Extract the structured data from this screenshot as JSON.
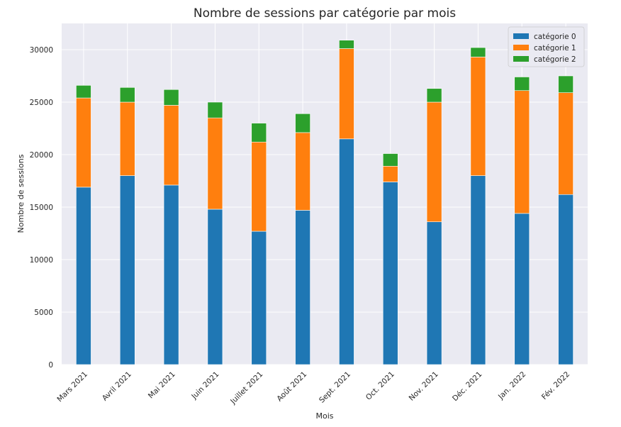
{
  "chart_data": {
    "type": "bar",
    "stacked": true,
    "title": "Nombre de sessions par catégorie par mois",
    "xlabel": "Mois",
    "ylabel": "Nombre de sessions",
    "ylim": [
      0,
      32500
    ],
    "yticks": [
      0,
      5000,
      10000,
      15000,
      20000,
      25000,
      30000
    ],
    "grid": true,
    "legend_position": "top-right",
    "categories": [
      "Mars 2021",
      "Avril 2021",
      "Mai 2021",
      "Juin 2021",
      "Juillet 2021",
      "Août 2021",
      "Sept. 2021",
      "Oct. 2021",
      "Nov. 2021",
      "Déc. 2021",
      "Jan. 2022",
      "Fév. 2022"
    ],
    "series": [
      {
        "name": "catégorie 0",
        "color": "#1f77b4",
        "values": [
          16900,
          18000,
          17100,
          14800,
          12700,
          14700,
          21500,
          17400,
          13600,
          18000,
          14400,
          16200
        ]
      },
      {
        "name": "catégorie 1",
        "color": "#ff7f0e",
        "values": [
          8500,
          7000,
          7600,
          8700,
          8500,
          7400,
          8600,
          1500,
          11400,
          11300,
          11700,
          9700
        ]
      },
      {
        "name": "catégorie 2",
        "color": "#2ca02c",
        "values": [
          1200,
          1400,
          1500,
          1500,
          1800,
          1800,
          800,
          1200,
          1300,
          900,
          1300,
          1600
        ]
      }
    ],
    "colors": {
      "plot_background": "#eaeaf2",
      "grid": "#ffffff",
      "text": "#262626"
    }
  }
}
